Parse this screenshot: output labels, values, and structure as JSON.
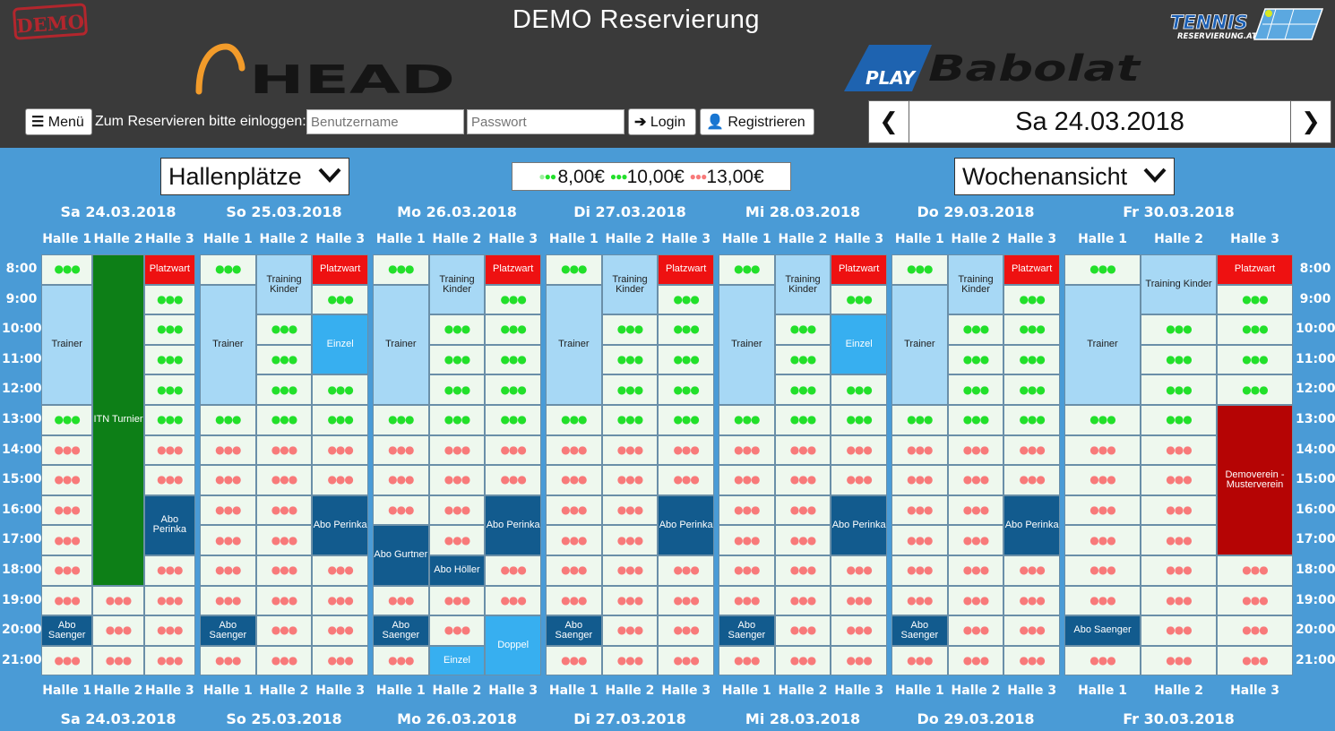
{
  "header": {
    "demo_badge": "DEMO",
    "title": "DEMO Reservierung",
    "logo_tennis_top": "TENNIS",
    "logo_tennis_bottom": "RESERVIERUNG.AT",
    "logo_head": "HEAD",
    "logo_play": "PLAY",
    "logo_babolat": "Babolat"
  },
  "toolbar": {
    "menu_label": "Menü",
    "login_prompt": "Zum Reservieren bitte einloggen:",
    "username_placeholder": "Benutzername",
    "password_placeholder": "Passwort",
    "login_label": "Login",
    "register_label": "Registrieren"
  },
  "date_nav": {
    "current": "Sa 24.03.2018"
  },
  "controls": {
    "area_select": "Hallenplätze",
    "view_select": "Wochenansicht",
    "prices": [
      {
        "label": "8,00€",
        "dot_colors": [
          "#9ef09e",
          "#22e02a",
          "#22e02a"
        ]
      },
      {
        "label": "10,00€",
        "dot_colors": [
          "#22e02a",
          "#22e02a",
          "#22e02a"
        ]
      },
      {
        "label": "13,00€",
        "dot_colors": [
          "#f87a7a",
          "#f87a7a",
          "#f87a7a"
        ]
      }
    ]
  },
  "colors": {
    "background": "#4a9bd6",
    "header": "#3a3a3a",
    "free_offpeak": "#22e02a",
    "free_peak": "#f87a7a",
    "trainer": "#a7d8f5",
    "einzel": "#37aff0",
    "abo": "#125b8e",
    "turnier": "#0d7f17",
    "platzwart": "#ee1111",
    "verein": "#b50404"
  },
  "times": [
    "8:00",
    "9:00",
    "10:00",
    "11:00",
    "12:00",
    "13:00",
    "14:00",
    "15:00",
    "16:00",
    "17:00",
    "18:00",
    "19:00",
    "20:00",
    "21:00"
  ],
  "courts": [
    "Halle 1",
    "Halle 2",
    "Halle 3"
  ],
  "slot_icon": "●●●",
  "days": [
    {
      "label": "Sa 24.03.2018",
      "bookings": [
        {
          "court": 0,
          "start": 1,
          "end": 5,
          "label": "Trainer",
          "type": "trainer"
        },
        {
          "court": 0,
          "start": 12,
          "end": 13,
          "label": "Abo Saenger",
          "type": "abo"
        },
        {
          "court": 1,
          "start": 0,
          "end": 11,
          "label": "ITN Turnier",
          "type": "turnier"
        },
        {
          "court": 2,
          "start": 0,
          "end": 1,
          "label": "Platzwart",
          "type": "platzwart"
        },
        {
          "court": 2,
          "start": 8,
          "end": 10,
          "label": "Abo Perinka",
          "type": "abo"
        }
      ]
    },
    {
      "label": "So 25.03.2018",
      "bookings": [
        {
          "court": 0,
          "start": 1,
          "end": 5,
          "label": "Trainer",
          "type": "trainer"
        },
        {
          "court": 0,
          "start": 12,
          "end": 13,
          "label": "Abo Saenger",
          "type": "abo"
        },
        {
          "court": 1,
          "start": 0,
          "end": 2,
          "label": "Training Kinder",
          "type": "trainer"
        },
        {
          "court": 2,
          "start": 0,
          "end": 1,
          "label": "Platzwart",
          "type": "platzwart"
        },
        {
          "court": 2,
          "start": 2,
          "end": 4,
          "label": "Einzel",
          "type": "einzel"
        },
        {
          "court": 2,
          "start": 8,
          "end": 10,
          "label": "Abo Perinka",
          "type": "abo"
        }
      ]
    },
    {
      "label": "Mo 26.03.2018",
      "bookings": [
        {
          "court": 0,
          "start": 1,
          "end": 5,
          "label": "Trainer",
          "type": "trainer"
        },
        {
          "court": 0,
          "start": 9,
          "end": 11,
          "label": "Abo Gurtner",
          "type": "abo"
        },
        {
          "court": 0,
          "start": 12,
          "end": 13,
          "label": "Abo Saenger",
          "type": "abo"
        },
        {
          "court": 1,
          "start": 0,
          "end": 2,
          "label": "Training Kinder",
          "type": "trainer"
        },
        {
          "court": 1,
          "start": 10,
          "end": 11,
          "label": "Abo Höller",
          "type": "abo"
        },
        {
          "court": 1,
          "start": 13,
          "end": 14,
          "label": "Einzel",
          "type": "einzel"
        },
        {
          "court": 2,
          "start": 0,
          "end": 1,
          "label": "Platzwart",
          "type": "platzwart"
        },
        {
          "court": 2,
          "start": 8,
          "end": 10,
          "label": "Abo Perinka",
          "type": "abo"
        },
        {
          "court": 2,
          "start": 12,
          "end": 14,
          "label": "Doppel",
          "type": "einzel"
        }
      ]
    },
    {
      "label": "Di 27.03.2018",
      "bookings": [
        {
          "court": 0,
          "start": 1,
          "end": 5,
          "label": "Trainer",
          "type": "trainer"
        },
        {
          "court": 0,
          "start": 12,
          "end": 13,
          "label": "Abo Saenger",
          "type": "abo"
        },
        {
          "court": 1,
          "start": 0,
          "end": 2,
          "label": "Training Kinder",
          "type": "trainer"
        },
        {
          "court": 2,
          "start": 0,
          "end": 1,
          "label": "Platzwart",
          "type": "platzwart"
        },
        {
          "court": 2,
          "start": 8,
          "end": 10,
          "label": "Abo Perinka",
          "type": "abo"
        }
      ]
    },
    {
      "label": "Mi 28.03.2018",
      "bookings": [
        {
          "court": 0,
          "start": 1,
          "end": 5,
          "label": "Trainer",
          "type": "trainer"
        },
        {
          "court": 0,
          "start": 12,
          "end": 13,
          "label": "Abo Saenger",
          "type": "abo"
        },
        {
          "court": 1,
          "start": 0,
          "end": 2,
          "label": "Training Kinder",
          "type": "trainer"
        },
        {
          "court": 2,
          "start": 0,
          "end": 1,
          "label": "Platzwart",
          "type": "platzwart"
        },
        {
          "court": 2,
          "start": 2,
          "end": 4,
          "label": "Einzel",
          "type": "einzel"
        },
        {
          "court": 2,
          "start": 8,
          "end": 10,
          "label": "Abo Perinka",
          "type": "abo"
        }
      ]
    },
    {
      "label": "Do 29.03.2018",
      "bookings": [
        {
          "court": 0,
          "start": 1,
          "end": 5,
          "label": "Trainer",
          "type": "trainer"
        },
        {
          "court": 0,
          "start": 12,
          "end": 13,
          "label": "Abo Saenger",
          "type": "abo"
        },
        {
          "court": 1,
          "start": 0,
          "end": 2,
          "label": "Training Kinder",
          "type": "trainer"
        },
        {
          "court": 2,
          "start": 0,
          "end": 1,
          "label": "Platzwart",
          "type": "platzwart"
        },
        {
          "court": 2,
          "start": 8,
          "end": 10,
          "label": "Abo Perinka",
          "type": "abo"
        }
      ]
    },
    {
      "label": "Fr 30.03.2018",
      "bookings": [
        {
          "court": 0,
          "start": 1,
          "end": 5,
          "label": "Trainer",
          "type": "trainer"
        },
        {
          "court": 0,
          "start": 12,
          "end": 13,
          "label": "Abo Saenger",
          "type": "abo"
        },
        {
          "court": 1,
          "start": 0,
          "end": 2,
          "label": "Training Kinder",
          "type": "trainer"
        },
        {
          "court": 2,
          "start": 0,
          "end": 1,
          "label": "Platzwart",
          "type": "platzwart"
        },
        {
          "court": 2,
          "start": 5,
          "end": 10,
          "label": "Demoverein - Musterverein",
          "type": "verein"
        }
      ]
    }
  ]
}
